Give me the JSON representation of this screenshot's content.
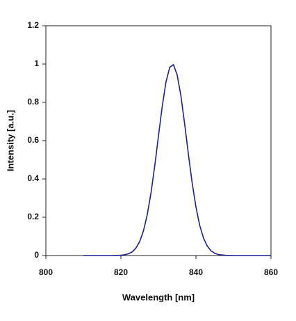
{
  "chart_data": {
    "type": "line",
    "xlabel": "Wavelength [nm]",
    "ylabel": "Intensity [a.u.]",
    "x": [
      810,
      814,
      816,
      818,
      820,
      821,
      822,
      823,
      824,
      825,
      826,
      827,
      828,
      829,
      830,
      831,
      832,
      833,
      834,
      835,
      836,
      837,
      838,
      839,
      840,
      841,
      842,
      843,
      844,
      845,
      846,
      848,
      850,
      855,
      860
    ],
    "values": [
      0,
      0,
      0,
      0.0002,
      0.0015,
      0.004,
      0.009,
      0.019,
      0.039,
      0.073,
      0.128,
      0.211,
      0.325,
      0.465,
      0.623,
      0.777,
      0.905,
      0.983,
      0.997,
      0.943,
      0.833,
      0.686,
      0.527,
      0.378,
      0.253,
      0.158,
      0.092,
      0.05,
      0.025,
      0.012,
      0.005,
      0.001,
      0,
      0,
      0
    ],
    "color": "#1f1f8f",
    "xlim": [
      800,
      860
    ],
    "xticks": [
      800,
      820,
      840,
      860
    ],
    "ylim": [
      0,
      1.2
    ],
    "yticks": [
      0,
      0.2,
      0.4,
      0.6,
      0.8,
      1,
      1.2
    ],
    "grid": false
  }
}
